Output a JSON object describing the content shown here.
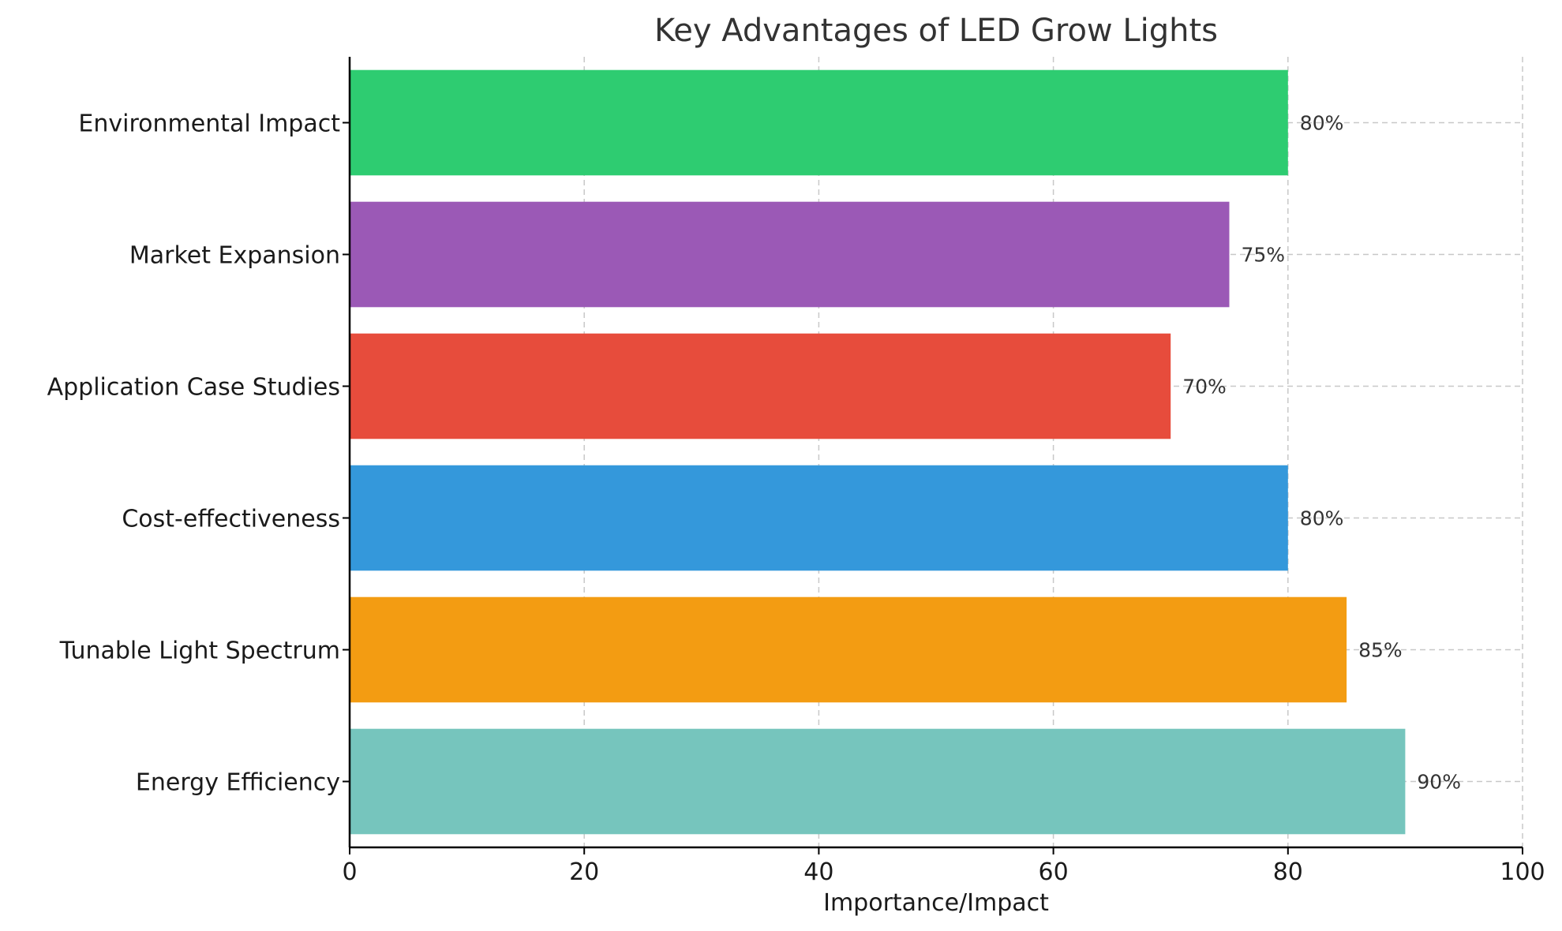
{
  "chart_data": {
    "type": "bar",
    "orientation": "horizontal",
    "title": "Key Advantages of LED Grow Lights",
    "xlabel": "Importance/Impact",
    "ylabel": "",
    "xlim": [
      0,
      100
    ],
    "xticks": [
      0,
      20,
      40,
      60,
      80,
      100
    ],
    "grid": true,
    "legend": "none",
    "categories": [
      "Energy Efficiency",
      "Tunable Light Spectrum",
      "Cost-effectiveness",
      "Application Case Studies",
      "Market Expansion",
      "Environmental Impact"
    ],
    "values": [
      90,
      85,
      80,
      70,
      75,
      80
    ],
    "value_labels": [
      "90%",
      "85%",
      "80%",
      "70%",
      "75%",
      "80%"
    ],
    "colors": [
      "#76c5bd",
      "#f39c12",
      "#3498db",
      "#e74c3c",
      "#9b59b6",
      "#2ecc71"
    ]
  }
}
